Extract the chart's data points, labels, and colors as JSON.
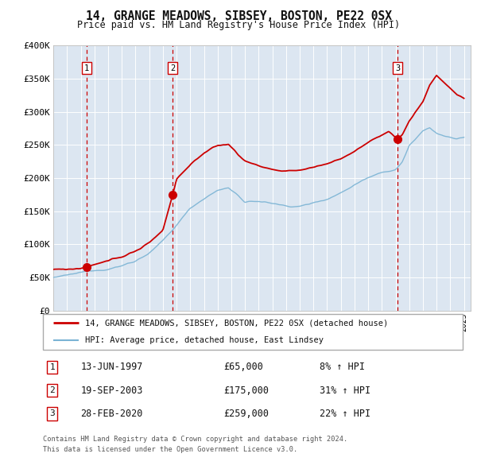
{
  "title": "14, GRANGE MEADOWS, SIBSEY, BOSTON, PE22 0SX",
  "subtitle": "Price paid vs. HM Land Registry's House Price Index (HPI)",
  "background_color": "#dce6f1",
  "plot_bg_color": "#dce6f1",
  "grid_color": "#ffffff",
  "hpi_line_color": "#7ab3d4",
  "price_line_color": "#cc0000",
  "sale_marker_color": "#cc0000",
  "dashed_line_color": "#cc0000",
  "ylim": [
    0,
    400000
  ],
  "yticks": [
    0,
    50000,
    100000,
    150000,
    200000,
    250000,
    300000,
    350000,
    400000
  ],
  "ytick_labels": [
    "£0",
    "£50K",
    "£100K",
    "£150K",
    "£200K",
    "£250K",
    "£300K",
    "£350K",
    "£400K"
  ],
  "xmin": 1995,
  "xmax": 2025.5,
  "sales": [
    {
      "date_num": 1997.44,
      "price": 65000,
      "label": "1",
      "date_str": "13-JUN-1997",
      "pct": "8% ↑ HPI"
    },
    {
      "date_num": 2003.72,
      "price": 175000,
      "label": "2",
      "date_str": "19-SEP-2003",
      "pct": "31% ↑ HPI"
    },
    {
      "date_num": 2020.16,
      "price": 259000,
      "label": "3",
      "date_str": "28-FEB-2020",
      "pct": "22% ↑ HPI"
    }
  ],
  "legend_line1": "14, GRANGE MEADOWS, SIBSEY, BOSTON, PE22 0SX (detached house)",
  "legend_line2": "HPI: Average price, detached house, East Lindsey",
  "footer1": "Contains HM Land Registry data © Crown copyright and database right 2024.",
  "footer2": "This data is licensed under the Open Government Licence v3.0."
}
